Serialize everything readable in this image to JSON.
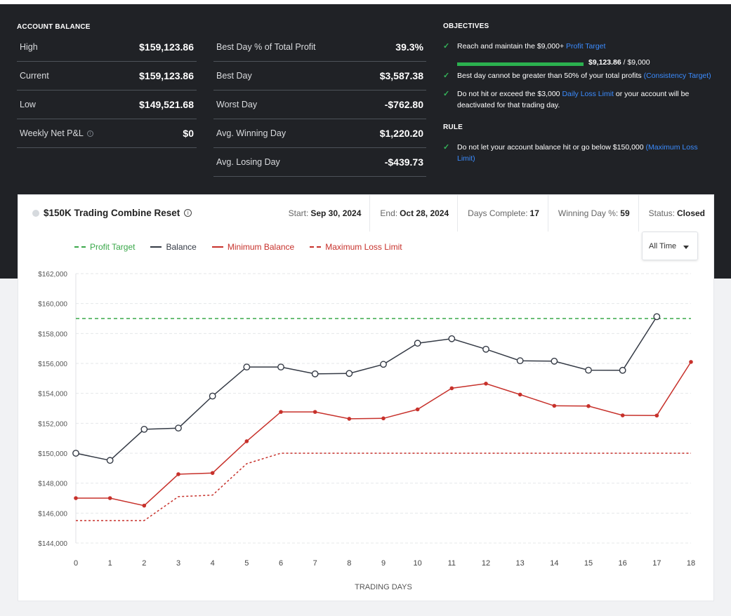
{
  "account_balance": {
    "title": "ACCOUNT BALANCE",
    "col1": [
      {
        "label": "High",
        "value": "$159,123.86"
      },
      {
        "label": "Current",
        "value": "$159,123.86"
      },
      {
        "label": "Low",
        "value": "$149,521.68"
      },
      {
        "label": "Weekly Net P&L",
        "value": "$0"
      }
    ],
    "col2": [
      {
        "label": "Best Day % of Total Profit",
        "value": "39.3%"
      },
      {
        "label": "Best Day",
        "value": "$3,587.38"
      },
      {
        "label": "Worst Day",
        "value": "-$762.80"
      },
      {
        "label": "Avg. Winning Day",
        "value": "$1,220.20"
      },
      {
        "label": "Avg. Losing Day",
        "value": "-$439.73"
      }
    ]
  },
  "objectives": {
    "title": "OBJECTIVES",
    "items": [
      {
        "text": "Reach and maintain the $9,000+ ",
        "link": "Profit Target"
      },
      {
        "text": "Best day cannot be greater than 50% of your total profits ",
        "link": "(Consistency Target)"
      },
      {
        "text": "Do not hit or exceed the $3,000 ",
        "link": "Daily Loss Limit",
        "text_after": " or your account will be deactivated for that trading day."
      }
    ],
    "progress_current": "$9,123.86",
    "progress_target": " / $9,000",
    "progress_fraction": 1.0
  },
  "rule": {
    "title": "RULE",
    "text": "Do not let your account balance hit or go below $150,000 ",
    "link": "(Maximum Loss Limit)"
  },
  "card": {
    "title": "$150K Trading Combine Reset",
    "stats": [
      {
        "label": "Start:",
        "value": "Sep 30, 2024"
      },
      {
        "label": "End:",
        "value": "Oct 28, 2024"
      },
      {
        "label": "Days Complete:",
        "value": "17"
      },
      {
        "label": "Winning Day %:",
        "value": "59"
      },
      {
        "label": "Status:",
        "value": "Closed"
      }
    ],
    "range_select": "All Time"
  },
  "colors": {
    "profit_target": "#3aa84a",
    "balance": "#343a45",
    "minimum_balance": "#c7312b",
    "max_loss": "#c7312b",
    "link": "#3b8cff",
    "check": "#35b45a"
  },
  "chart_data": {
    "type": "line",
    "xlabel": "TRADING DAYS",
    "ylabel": "",
    "x": [
      0,
      1,
      2,
      3,
      4,
      5,
      6,
      7,
      8,
      9,
      10,
      11,
      12,
      13,
      14,
      15,
      16,
      17,
      18
    ],
    "ylim": [
      144000,
      162000
    ],
    "yticks": [
      144000,
      146000,
      148000,
      150000,
      152000,
      154000,
      156000,
      158000,
      160000,
      162000
    ],
    "ytick_labels": [
      "$144,000",
      "$146,000",
      "$148,000",
      "$150,000",
      "$152,000",
      "$154,000",
      "$156,000",
      "$158,000",
      "$160,000",
      "$162,000"
    ],
    "legend": [
      "Profit Target",
      "Balance",
      "Minimum Balance",
      "Maximum Loss Limit"
    ],
    "series": [
      {
        "name": "Profit Target",
        "style": "dashed",
        "x": [
          0,
          18
        ],
        "values": [
          159000,
          159000
        ]
      },
      {
        "name": "Balance",
        "style": "solid-hollow-markers",
        "x": [
          0,
          1,
          2,
          3,
          4,
          5,
          6,
          7,
          8,
          9,
          10,
          11,
          12,
          13,
          14,
          15,
          16,
          17
        ],
        "values": [
          150000,
          149522,
          151600,
          151680,
          153820,
          155760,
          155760,
          155300,
          155330,
          155940,
          157350,
          157650,
          156950,
          156180,
          156150,
          155550,
          155540,
          159124
        ]
      },
      {
        "name": "Minimum Balance",
        "style": "solid-markers",
        "x": [
          0,
          1,
          2,
          3,
          4,
          5,
          6,
          7,
          8,
          9,
          10,
          11,
          12,
          13,
          14,
          15,
          16,
          17,
          18
        ],
        "values": [
          147000,
          147000,
          146500,
          148600,
          148680,
          150800,
          152760,
          152760,
          152300,
          152330,
          152930,
          154340,
          154650,
          153920,
          153170,
          153150,
          152530,
          152520,
          156100
        ]
      },
      {
        "name": "Maximum Loss Limit",
        "style": "dotted",
        "x": [
          0,
          1,
          2,
          3,
          4,
          5,
          6,
          7,
          8,
          9,
          10,
          11,
          12,
          13,
          14,
          15,
          16,
          17,
          18
        ],
        "values": [
          145500,
          145500,
          145500,
          147100,
          147200,
          149300,
          150000,
          150000,
          150000,
          150000,
          150000,
          150000,
          150000,
          150000,
          150000,
          150000,
          150000,
          150000,
          150000
        ]
      }
    ]
  }
}
